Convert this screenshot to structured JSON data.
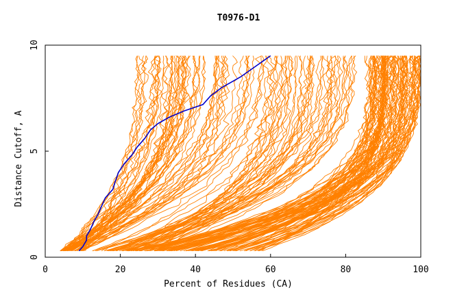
{
  "chart_data": {
    "type": "line",
    "title": "T0976-D1",
    "xlabel": "Percent of Residues (CA)",
    "ylabel": "Distance Cutoff, A",
    "xlim": [
      0,
      100
    ],
    "ylim": [
      0,
      10
    ],
    "x_ticks": [
      0,
      20,
      40,
      60,
      80,
      100
    ],
    "y_ticks": [
      0,
      5,
      10
    ],
    "grid": false,
    "legend": "none",
    "colors": {
      "background_series": "#ff8000",
      "highlight_series": "#0000cc",
      "axis": "#000000"
    },
    "highlight_series": {
      "y": [
        0.3,
        0.5,
        0.8,
        1.0,
        1.3,
        1.7,
        2.0,
        2.4,
        2.8,
        3.2,
        3.5,
        4.0,
        4.4,
        4.8,
        5.2,
        5.6,
        6.0,
        6.3,
        6.6,
        6.9,
        7.2,
        7.6,
        8.0,
        8.5,
        9.0,
        9.5
      ],
      "x": [
        9,
        10,
        11,
        11,
        12,
        13,
        14,
        15,
        16,
        18,
        18.5,
        19.5,
        21,
        23,
        24.5,
        26.5,
        28,
        30,
        33,
        37,
        42,
        44,
        47,
        52,
        56,
        60
      ]
    },
    "background_series_groups": [
      {
        "count": 60,
        "x_start": [
          4,
          10
        ],
        "x_end": [
          24,
          58
        ],
        "shape": 0.55
      },
      {
        "count": 45,
        "x_start": [
          12,
          30
        ],
        "x_end": [
          58,
          84
        ],
        "shape": 0.65
      },
      {
        "count": 95,
        "x_start": [
          22,
          58
        ],
        "x_end": [
          86,
          100
        ],
        "shape": 0.9
      }
    ]
  }
}
